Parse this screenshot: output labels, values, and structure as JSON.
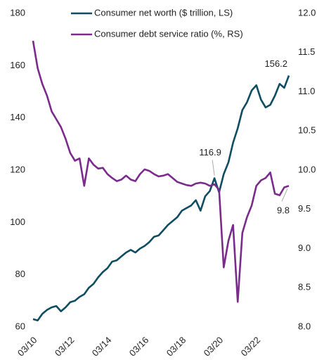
{
  "chart_data": {
    "type": "line",
    "categories": [
      "03/10",
      null,
      null,
      null,
      null,
      null,
      null,
      null,
      "03/12",
      null,
      null,
      null,
      null,
      null,
      null,
      null,
      "03/14",
      null,
      null,
      null,
      null,
      null,
      null,
      null,
      "03/16",
      null,
      null,
      null,
      null,
      null,
      null,
      null,
      "03/18",
      null,
      null,
      null,
      null,
      null,
      null,
      null,
      "03/20",
      null,
      null,
      null,
      null,
      null,
      null,
      null,
      "03/22",
      null,
      null,
      null,
      null,
      null,
      null,
      null
    ],
    "series": [
      {
        "name": "Consumer net worth ($ trillion, LS)",
        "color": "#0e4d62",
        "axis": "y",
        "values": [
          63,
          62.5,
          65,
          66.5,
          67.5,
          68,
          66,
          67.5,
          69.5,
          70,
          71.5,
          72.5,
          75,
          76.5,
          79,
          81,
          82.5,
          85,
          85.5,
          87,
          88.5,
          89.5,
          88.5,
          90,
          91,
          92.5,
          94.5,
          95,
          97,
          99,
          100.5,
          102,
          104.5,
          105.5,
          106.5,
          108.5,
          104.5,
          110,
          112,
          116.9,
          111.5,
          118.5,
          123,
          130.5,
          136,
          143,
          146,
          150.5,
          152.5,
          147,
          144,
          145,
          148.5,
          153,
          151.5,
          156.2
        ],
        "value_labels": [
          null,
          null,
          null,
          null,
          null,
          null,
          null,
          null,
          null,
          null,
          null,
          null,
          null,
          null,
          null,
          null,
          null,
          null,
          null,
          null,
          null,
          null,
          null,
          null,
          null,
          null,
          null,
          null,
          null,
          null,
          null,
          null,
          null,
          null,
          null,
          null,
          null,
          null,
          null,
          "116.9",
          null,
          null,
          null,
          null,
          null,
          null,
          null,
          null,
          null,
          null,
          null,
          null,
          null,
          null,
          null,
          "156.2"
        ]
      },
      {
        "name": "Consumer debt service ratio (%, RS)",
        "color": "#7b2b8c",
        "axis": "y2",
        "values": [
          11.65,
          11.3,
          11.1,
          10.95,
          10.75,
          10.65,
          10.55,
          10.4,
          10.22,
          10.12,
          10.15,
          9.8,
          10.15,
          10.07,
          10.02,
          10.03,
          9.95,
          9.9,
          9.86,
          9.88,
          9.93,
          9.88,
          9.86,
          9.95,
          10.01,
          9.99,
          9.95,
          9.92,
          9.93,
          9.95,
          9.9,
          9.85,
          9.83,
          9.81,
          9.8,
          9.83,
          9.84,
          9.83,
          9.8,
          9.82,
          9.75,
          8.76,
          9.1,
          9.3,
          8.32,
          9.2,
          9.4,
          9.55,
          9.8,
          9.87,
          9.9,
          9.97,
          9.7,
          9.68,
          9.78,
          9.8
        ],
        "value_labels": [
          null,
          null,
          null,
          null,
          null,
          null,
          null,
          null,
          null,
          null,
          null,
          null,
          null,
          null,
          null,
          null,
          null,
          null,
          null,
          null,
          null,
          null,
          null,
          null,
          null,
          null,
          null,
          null,
          null,
          null,
          null,
          null,
          null,
          null,
          null,
          null,
          null,
          null,
          null,
          null,
          null,
          null,
          null,
          null,
          null,
          null,
          null,
          null,
          null,
          null,
          null,
          null,
          null,
          null,
          null,
          "9.8"
        ]
      }
    ],
    "ylim": [
      60,
      180
    ],
    "yticks": [
      60,
      80,
      100,
      120,
      140,
      160,
      180
    ],
    "y2lim": [
      8,
      12
    ],
    "y2ticks": [
      {
        "value": 8,
        "label": "8.0"
      },
      {
        "value": 8.5,
        "label": "8.5"
      },
      {
        "value": 9,
        "label": "9.0"
      },
      {
        "value": 9.5,
        "label": "9.5"
      },
      {
        "value": 10,
        "label": "10.0"
      },
      {
        "value": 10.5,
        "label": "10.5"
      },
      {
        "value": 11,
        "label": "11.0"
      },
      {
        "value": 11.5,
        "label": "11.5"
      },
      {
        "value": 12,
        "label": "12.0"
      }
    ],
    "legend": "top",
    "grid": false
  }
}
